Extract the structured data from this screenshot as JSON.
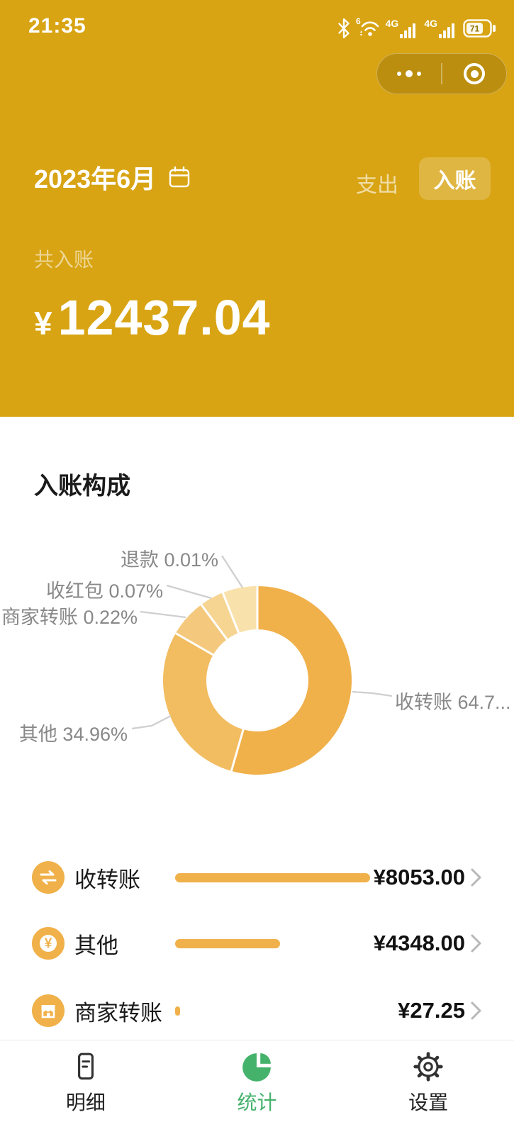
{
  "status_bar": {
    "time": "21:35",
    "wifi_gen": "6",
    "net1": "4G",
    "net2": "4G",
    "battery_pct": "71"
  },
  "capsule": {
    "more_icon": "ellipsis",
    "home_icon": "target"
  },
  "header": {
    "month": "2023年6月",
    "tab_expense": "支出",
    "tab_income": "入账",
    "total_label": "共入账",
    "currency": "¥",
    "total_amount": "12437.04"
  },
  "section": {
    "title": "入账构成"
  },
  "chart_data": {
    "type": "pie",
    "title": "入账构成",
    "donut": true,
    "legend_position": "callout-labels",
    "slices": [
      {
        "name": "收转账",
        "pct": 64.75,
        "label": "收转账 64.7...",
        "color": "#F0B04A",
        "display_start": 0,
        "display_end": 196
      },
      {
        "name": "其他",
        "pct": 34.96,
        "label": "其他 34.96%",
        "color": "#F2BC60",
        "display_start": 196,
        "display_end": 300
      },
      {
        "name": "商家转账",
        "pct": 0.22,
        "label": "商家转账 0.22%",
        "color": "#F4C97D",
        "display_start": 300,
        "display_end": 323.5
      },
      {
        "name": "收红包",
        "pct": 0.07,
        "label": "收红包 0.07%",
        "color": "#F6D492",
        "display_start": 323.5,
        "display_end": 338.5
      },
      {
        "name": "退款",
        "pct": 0.01,
        "label": "退款 0.01%",
        "color": "#F9E1AC",
        "display_start": 338.5,
        "display_end": 360
      }
    ]
  },
  "breakdown": {
    "bar_color": "#F0B14A",
    "rows": [
      {
        "label": "收转账",
        "amount": "¥8053.00",
        "value": 8053.0,
        "icon": "transfer-icon"
      },
      {
        "label": "其他",
        "amount": "¥4348.00",
        "value": 4348.0,
        "icon": "yuan-icon"
      },
      {
        "label": "商家转账",
        "amount": "¥27.25",
        "value": 27.25,
        "icon": "merchant-icon"
      }
    ]
  },
  "tab_bar": {
    "active_color": "#45B26C",
    "items": [
      {
        "label": "明细",
        "icon": "detail-icon",
        "active": false
      },
      {
        "label": "统计",
        "icon": "stats-icon",
        "active": true
      },
      {
        "label": "设置",
        "icon": "settings-icon",
        "active": false
      }
    ]
  }
}
